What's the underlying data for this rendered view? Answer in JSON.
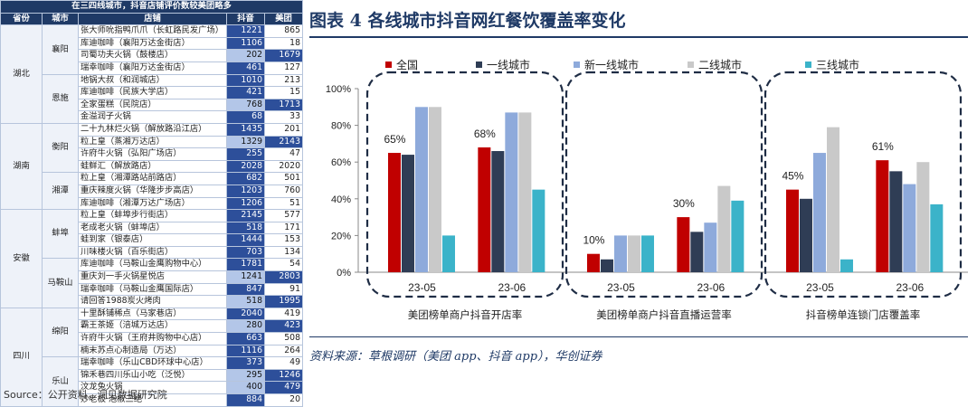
{
  "table": {
    "caption": "在三四线城市，抖音店铺评价数较美团略多",
    "headers": [
      "省份",
      "城市",
      "店铺",
      "抖音",
      "美团"
    ],
    "provinces": [
      {
        "name": "湖北",
        "cities": [
          {
            "name": "襄阳",
            "rows": [
              [
                "张大师吮指鸭爪爪（长虹路民发广场）",
                1221,
                865
              ],
              [
                "库迪咖啡（襄阳万达金街店）",
                1106,
                18
              ],
              [
                "司蜀功夫火锅（鼓楼店）",
                202,
                1679
              ],
              [
                "瑞幸咖啡（襄阳万达金街店）",
                461,
                127
              ]
            ]
          },
          {
            "name": "恩施",
            "rows": [
              [
                "地锅大叔（和润城店）",
                1010,
                213
              ],
              [
                "库迪咖啡（民族大学店）",
                421,
                15
              ],
              [
                "全家蛋糕（民院店）",
                768,
                1713
              ],
              [
                "金溢润子火锅",
                68,
                33
              ]
            ]
          }
        ]
      },
      {
        "name": "湖南",
        "cities": [
          {
            "name": "衡阳",
            "rows": [
              [
                "二十九林烂火锅（解放路沿江店）",
                1435,
                201
              ],
              [
                "粒上皇（蒸湘万达店）",
                1329,
                2143
              ],
              [
                "许府牛火锅（弘阳广场店）",
                255,
                47
              ],
              [
                "蛙鲜汇（解放路店）",
                2028,
                2020
              ]
            ]
          },
          {
            "name": "湘潭",
            "rows": [
              [
                "粒上皇（湘潭路站前路店）",
                682,
                501
              ],
              [
                "重庆辣度火锅（华隆步步高店）",
                1203,
                760
              ],
              [
                "库迪咖啡（湘潭万达广场店）",
                1206,
                51
              ]
            ]
          }
        ]
      },
      {
        "name": "安徽",
        "cities": [
          {
            "name": "蚌埠",
            "rows": [
              [
                "粒上皇（蚌埠步行街店）",
                2145,
                577
              ],
              [
                "老成老火锅（蚌埠店）",
                518,
                171
              ],
              [
                "蛙到家（银泰店）",
                1444,
                153
              ],
              [
                "川味楼火锅（百乐街店）",
                703,
                134
              ]
            ]
          },
          {
            "name": "马鞍山",
            "rows": [
              [
                "库迪咖啡（马鞍山金鹰购物中心）",
                1781,
                54
              ],
              [
                "重庆刘一手火锅星悦店",
                1241,
                2803
              ],
              [
                "瑞幸咖啡（马鞍山金鹰国际店）",
                847,
                91
              ],
              [
                "请回答1988炭火烤肉",
                518,
                1995
              ]
            ]
          }
        ]
      },
      {
        "name": "四川",
        "cities": [
          {
            "name": "绵阳",
            "rows": [
              [
                "十里酥铺稀点（马家巷店）",
                2040,
                419
              ],
              [
                "霸王茶姬（涪城万达店）",
                280,
                423
              ],
              [
                "许府牛火锅（王府井购物中心店）",
                663,
                508
              ],
              [
                "楠末苏点心制造局（万达）",
                1116,
                264
              ]
            ]
          },
          {
            "name": "乐山",
            "rows": [
              [
                "瑞幸咖啡（乐山CBD环球中心店）",
                373,
                49
              ],
              [
                "锦禾巷四川乐山小吃（泛悦）",
                295,
                1246
              ],
              [
                "汶龙兔火锅",
                400,
                479
              ],
              [
                "妙老板·泡椒三绝",
                884,
                20
              ]
            ]
          }
        ]
      }
    ]
  },
  "source": "Source：公开资料，洞见数据研究院",
  "figure": {
    "title": "图表 4   各线城市抖音网红餐饮覆盖率变化",
    "source": "资料来源：草根调研（美团 app、抖音 app），华创证券"
  },
  "chart_data": {
    "type": "bar",
    "ylim": [
      0,
      100
    ],
    "yticks": [
      "0%",
      "20%",
      "40%",
      "60%",
      "80%",
      "100%"
    ],
    "legend": {
      "position": "top",
      "entries": [
        "全国",
        "一线城市",
        "新一线城市",
        "二线城市",
        "三线城市"
      ]
    },
    "series_colors": [
      "#c00000",
      "#2f3d55",
      "#8eaadb",
      "#c9c9c9",
      "#3bb3c9"
    ],
    "groups": [
      {
        "label": "美团榜单商户抖音开店率",
        "periods": [
          {
            "x": "23-05",
            "values": [
              65,
              64,
              90,
              90,
              20
            ],
            "label": "65%"
          },
          {
            "x": "23-06",
            "values": [
              68,
              66,
              87,
              87,
              45
            ],
            "label": "68%"
          }
        ]
      },
      {
        "label": "美团榜单商户抖音直播运营率",
        "periods": [
          {
            "x": "23-05",
            "values": [
              10,
              7,
              20,
              20,
              20
            ],
            "label": "10%"
          },
          {
            "x": "23-06",
            "values": [
              30,
              22,
              27,
              47,
              39
            ],
            "label": "30%"
          }
        ]
      },
      {
        "label": "抖音榜单连锁门店覆盖率",
        "periods": [
          {
            "x": "23-05",
            "values": [
              45,
              40,
              65,
              79,
              7
            ],
            "label": "45%"
          },
          {
            "x": "23-06",
            "values": [
              61,
              55,
              48,
              60,
              37
            ],
            "label": "61%"
          }
        ]
      }
    ]
  }
}
